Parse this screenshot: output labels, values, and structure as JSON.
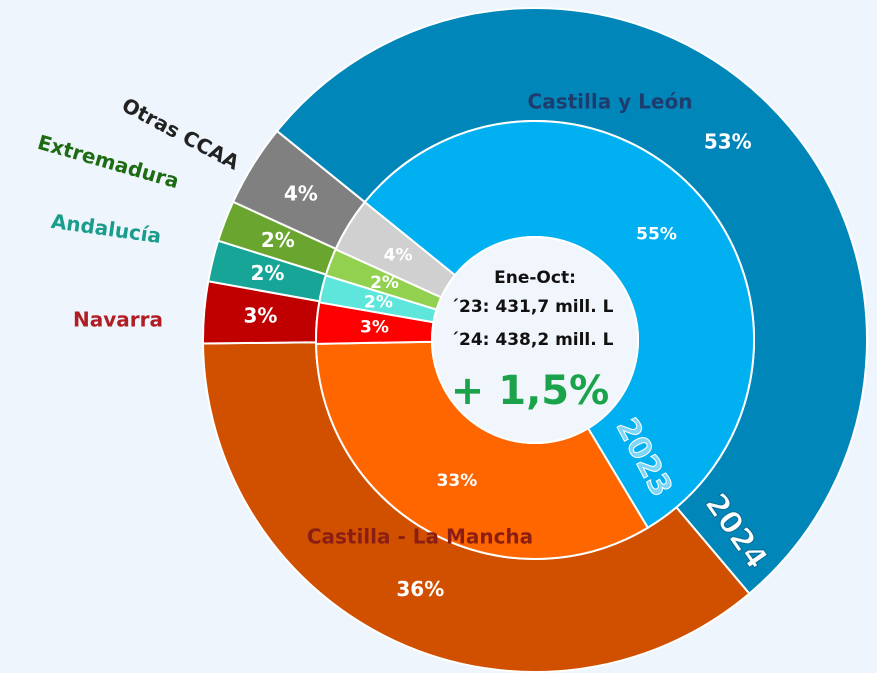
{
  "chart_data": {
    "type": "nested-donut",
    "categories": [
      "Castilla y León",
      "Castilla - La Mancha",
      "Navarra",
      "Andalucía",
      "Extremadura",
      "Otras CCAA"
    ],
    "category_colors": [
      "#1f3c6e",
      "#8b1e12",
      "#b01e24",
      "#1a9c8c",
      "#1d6b12",
      "#222222"
    ],
    "series": [
      {
        "name": "2024",
        "values": [
          53,
          36,
          3,
          2,
          2,
          4
        ],
        "value_labels": [
          "53%",
          "36%",
          "3%",
          "2%",
          "2%",
          "4%"
        ],
        "colors": [
          "#0086b8",
          "#d05000",
          "#c00000",
          "#17a597",
          "#6aa52f",
          "#808080"
        ]
      },
      {
        "name": "2023",
        "values": [
          55,
          33,
          3,
          2,
          2,
          4
        ],
        "value_labels": [
          "55%",
          "33%",
          "3%",
          "2%",
          "2%",
          "4%"
        ],
        "colors": [
          "#00b0f0",
          "#ff6600",
          "#ff0000",
          "#5ee6dc",
          "#92d050",
          "#d0d0d0"
        ]
      }
    ],
    "center_text": {
      "period": "Ene-Oct:",
      "line_2023": "´23: 431,7 mill. L",
      "line_2024": "´24: 438,2 mill. L",
      "change": "+ 1,5%"
    }
  }
}
